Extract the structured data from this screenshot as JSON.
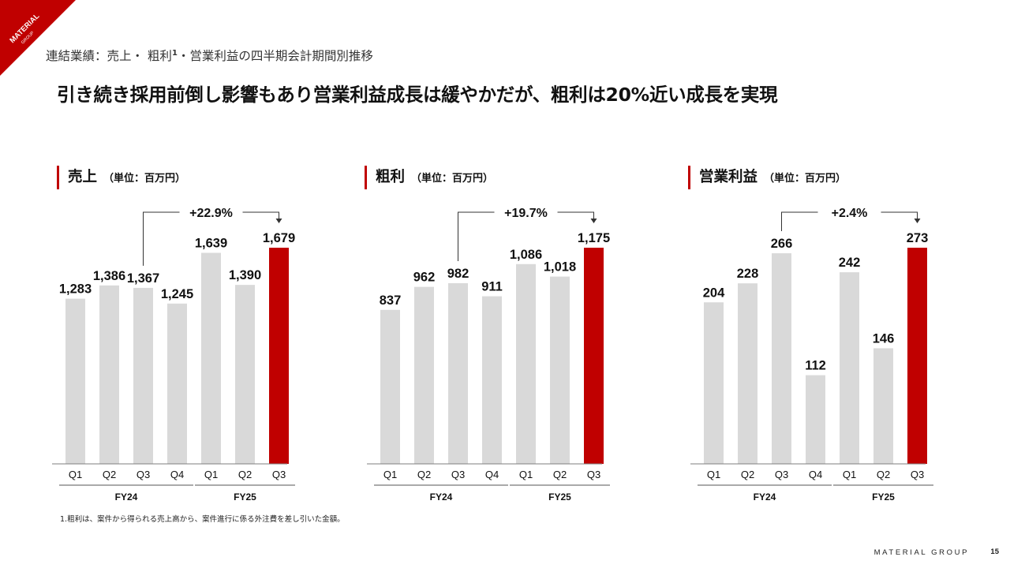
{
  "header": {
    "logo_text": "MATERIAL",
    "logo_subtext": "GROUP",
    "breadcrumb_pre": "連結業績：売上・ 粗利",
    "breadcrumb_sup": "1",
    "breadcrumb_post": "・営業利益の四半期会計期間別推移",
    "headline": "引き続き採用前倒し影響もあり営業利益成長は緩やかだが、粗利は20%近い成長を実現"
  },
  "panels": [
    {
      "title": "売上",
      "unit": "（単位：百万円）"
    },
    {
      "title": "粗利",
      "unit": "（単位：百万円）"
    },
    {
      "title": "営業利益",
      "unit": "（単位：百万円）"
    }
  ],
  "colors": {
    "accent": "#c00000",
    "bar": "#d9d9d9",
    "axis": "#7f7f7f"
  },
  "chart_data": [
    {
      "type": "bar",
      "title": "売上",
      "categories": [
        "Q1",
        "Q2",
        "Q3",
        "Q4",
        "Q1",
        "Q2",
        "Q3"
      ],
      "groups": [
        {
          "label": "FY24",
          "count": 4
        },
        {
          "label": "FY25",
          "count": 3
        }
      ],
      "values": [
        1283,
        1386,
        1367,
        1245,
        1639,
        1390,
        1679
      ],
      "labels": [
        "1,283",
        "1,386",
        "1,367",
        "1,245",
        "1,639",
        "1,390",
        "1,679"
      ],
      "highlight_index": 6,
      "ylim": [
        0,
        1679
      ],
      "annotation": {
        "text": "+22.9%",
        "from_index": 2,
        "to_index": 6
      }
    },
    {
      "type": "bar",
      "title": "粗利",
      "categories": [
        "Q1",
        "Q2",
        "Q3",
        "Q4",
        "Q1",
        "Q2",
        "Q3"
      ],
      "groups": [
        {
          "label": "FY24",
          "count": 4
        },
        {
          "label": "FY25",
          "count": 3
        }
      ],
      "values": [
        837,
        962,
        982,
        911,
        1086,
        1018,
        1175
      ],
      "labels": [
        "837",
        "962",
        "982",
        "911",
        "1,086",
        "1,018",
        "1,175"
      ],
      "highlight_index": 6,
      "ylim": [
        0,
        1175
      ],
      "annotation": {
        "text": "+19.7%",
        "from_index": 2,
        "to_index": 6
      }
    },
    {
      "type": "bar",
      "title": "営業利益",
      "categories": [
        "Q1",
        "Q2",
        "Q3",
        "Q4",
        "Q1",
        "Q2",
        "Q3"
      ],
      "groups": [
        {
          "label": "FY24",
          "count": 4
        },
        {
          "label": "FY25",
          "count": 3
        }
      ],
      "values": [
        204,
        228,
        266,
        112,
        242,
        146,
        273
      ],
      "labels": [
        "204",
        "228",
        "266",
        "112",
        "242",
        "146",
        "273"
      ],
      "highlight_index": 6,
      "ylim": [
        0,
        273
      ],
      "annotation": {
        "text": "+2.4%",
        "from_index": 2,
        "to_index": 6
      }
    }
  ],
  "footnote": "1.粗利は、案件から得られる売上高から、案件進行に係る外注費を差し引いた金額。",
  "footer": {
    "brand": "MATERIAL GROUP",
    "page": "15"
  }
}
